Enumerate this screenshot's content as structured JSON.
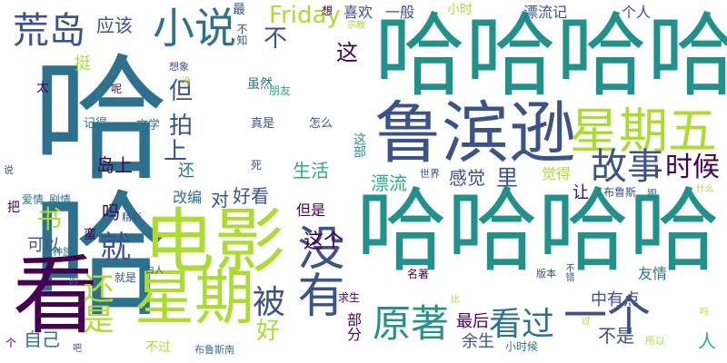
{
  "palette": {
    "deep_purple": "#440154",
    "indigo": "#3b528b",
    "blue_teal": "#2c728e",
    "teal": "#21918c",
    "green_teal": "#28ae80",
    "green": "#5ec962",
    "lime": "#addc30",
    "yellow": "#fde725"
  },
  "words": [
    {
      "text": "哈哈"
    },
    {
      "text": "哈哈哈哈"
    },
    {
      "text": "哈哈哈哈"
    },
    {
      "text": "鲁滨逊"
    },
    {
      "text": "电影"
    },
    {
      "text": "星期"
    },
    {
      "text": "看"
    },
    {
      "text": "星期五"
    },
    {
      "text": "没有"
    },
    {
      "text": "小说"
    },
    {
      "text": "荒岛"
    },
    {
      "text": "一个"
    },
    {
      "text": "原著"
    },
    {
      "text": "故事"
    },
    {
      "text": "还是"
    },
    {
      "text": "看过"
    },
    {
      "text": "Friday"
    },
    {
      "text": "时候"
    },
    {
      "text": "被"
    },
    {
      "text": "就"
    },
    {
      "text": "书"
    },
    {
      "text": "拍"
    },
    {
      "text": "但"
    },
    {
      "text": "不"
    },
    {
      "text": "这"
    },
    {
      "text": "这个"
    },
    {
      "text": "好"
    },
    {
      "text": "上"
    },
    {
      "text": "喜欢"
    },
    {
      "text": "一般"
    },
    {
      "text": "应该"
    },
    {
      "text": "漂流记"
    },
    {
      "text": "个人"
    },
    {
      "text": "小时"
    },
    {
      "text": "岛上"
    },
    {
      "text": "生活"
    },
    {
      "text": "感觉"
    },
    {
      "text": "里"
    },
    {
      "text": "漂流"
    },
    {
      "text": "觉得"
    },
    {
      "text": "让"
    },
    {
      "text": "对"
    },
    {
      "text": "好看"
    },
    {
      "text": "改编"
    },
    {
      "text": "还"
    },
    {
      "text": "可以"
    },
    {
      "text": "自己"
    },
    {
      "text": "最后"
    },
    {
      "text": "不是"
    },
    {
      "text": "中有点"
    },
    {
      "text": "余生"
    },
    {
      "text": "人"
    },
    {
      "text": "挺"
    },
    {
      "text": "虽然"
    },
    {
      "text": "朋友"
    },
    {
      "text": "文学"
    },
    {
      "text": "记得"
    },
    {
      "text": "真是"
    },
    {
      "text": "怎么"
    },
    {
      "text": "这部"
    },
    {
      "text": "吗"
    },
    {
      "text": "太"
    },
    {
      "text": "呢"
    },
    {
      "text": "想象"
    },
    {
      "text": "最"
    },
    {
      "text": "不知"
    },
    {
      "text": "想"
    },
    {
      "text": "宗教"
    },
    {
      "text": "世界"
    },
    {
      "text": "布鲁斯"
    },
    {
      "text": "跟"
    },
    {
      "text": "什么"
    },
    {
      "text": "爱情"
    },
    {
      "text": "剧情"
    },
    {
      "text": "精彩"
    },
    {
      "text": "死"
    },
    {
      "text": "但是"
    },
    {
      "text": "蛮"
    },
    {
      "text": "种族"
    },
    {
      "text": "就是"
    },
    {
      "text": "白人"
    },
    {
      "text": "名著"
    },
    {
      "text": "求生"
    },
    {
      "text": "版本"
    },
    {
      "text": "不错"
    },
    {
      "text": "友情"
    },
    {
      "text": "部分"
    },
    {
      "text": "不过"
    },
    {
      "text": "布鲁斯南"
    },
    {
      "text": "小时候"
    },
    {
      "text": "所以"
    },
    {
      "text": "个"
    },
    {
      "text": "说"
    },
    {
      "text": "把"
    },
    {
      "text": "比"
    },
    {
      "text": "过"
    },
    {
      "text": "吗"
    },
    {
      "text": "吧"
    },
    {
      "text": "的"
    },
    {
      "text": "没"
    }
  ]
}
